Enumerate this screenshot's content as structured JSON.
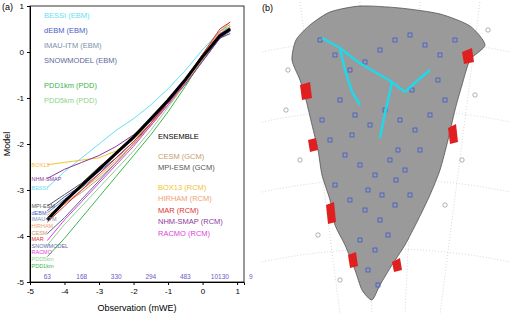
{
  "chart_data": {
    "type": "line",
    "panel_label": "(a)",
    "xlabel": "Observation (mWE)",
    "ylabel": "Model",
    "x": [
      -4.5,
      -4,
      -3.5,
      -3,
      -2.5,
      -2,
      -1.5,
      -1,
      -0.5,
      0,
      0.5,
      0.8
    ],
    "xlim": [
      -5,
      1.2
    ],
    "ylim": [
      -5,
      1
    ],
    "xticks": [
      -5,
      -4,
      -3,
      -2,
      -1,
      0,
      1
    ],
    "yticks": [
      -5,
      -4,
      -3,
      -2,
      -1,
      0,
      1
    ],
    "series": [
      {
        "name": "BESSI (EBM)",
        "start_label": "BESSI",
        "color": "#66e0f0",
        "line_style": "solid",
        "values": [
          -2.95,
          -2.6,
          -2.3,
          -2.0,
          -1.7,
          -1.45,
          -1.15,
          -0.8,
          -0.4,
          0.05,
          0.45,
          0.55
        ]
      },
      {
        "name": "dEBM (EBM)",
        "start_label": "dEBM",
        "color": "#4a5cc7",
        "line_style": "solid",
        "values": [
          -3.45,
          -3.15,
          -2.9,
          -2.6,
          -2.3,
          -1.95,
          -1.55,
          -1.15,
          -0.7,
          -0.2,
          0.3,
          0.45
        ]
      },
      {
        "name": "IMAU-ITM (EBM)",
        "start_label": "IMAU-ITM",
        "color": "#7b8fa8",
        "line_style": "solid",
        "values": [
          -3.5,
          -3.2,
          -2.95,
          -2.65,
          -2.3,
          -1.95,
          -1.55,
          -1.1,
          -0.65,
          -0.1,
          0.4,
          0.55
        ]
      },
      {
        "name": "SNOWMODEL (EBM)",
        "start_label": "SNOWMODEL",
        "color": "#5a6a9a",
        "line_style": "solid",
        "values": [
          -3.95,
          -3.6,
          -3.2,
          -2.8,
          -2.4,
          -2.0,
          -1.55,
          -1.1,
          -0.6,
          -0.1,
          0.35,
          0.45
        ]
      },
      {
        "name": "PDD1km (PDD)",
        "start_label": "PDD1km",
        "color": "#3cb44b",
        "line_style": "solid",
        "values": [
          -4.45,
          -4.05,
          -3.6,
          -3.15,
          -2.7,
          -2.25,
          -1.8,
          -1.3,
          -0.75,
          -0.15,
          0.35,
          0.5
        ]
      },
      {
        "name": "PDD5km (PDD)",
        "start_label": "PDD5km",
        "color": "#8fd18a",
        "line_style": "solid",
        "values": [
          -4.2,
          -3.75,
          -3.35,
          -2.95,
          -2.55,
          -2.15,
          -1.7,
          -1.2,
          -0.7,
          -0.1,
          0.4,
          0.55
        ]
      },
      {
        "name": "ENSEMBLE",
        "color": "#000000",
        "line_style": "thick",
        "values": [
          -3.65,
          -3.25,
          -2.9,
          -2.55,
          -2.2,
          -1.85,
          -1.45,
          -1.05,
          -0.6,
          -0.1,
          0.35,
          0.5
        ]
      },
      {
        "name": "CESM (GCM)",
        "start_label": "CESM",
        "color": "#c4a06a",
        "line_style": "solid",
        "values": [
          -3.6,
          -3.3,
          -3.05,
          -2.75,
          -2.4,
          -2.0,
          -1.6,
          -1.15,
          -0.65,
          -0.05,
          0.45,
          0.6
        ]
      },
      {
        "name": "MPI-ESM (GCM)",
        "start_label": "MPI-ESM",
        "color": "#555555",
        "line_style": "solid",
        "values": [
          -3.35,
          -3.1,
          -2.85,
          -2.5,
          -2.2,
          -1.9,
          -1.5,
          -1.1,
          -0.65,
          -0.15,
          0.3,
          0.4
        ]
      },
      {
        "name": "BOX13 (RCM)",
        "start_label": "BOX13",
        "color": "#f2c230",
        "line_style": "solid",
        "values": [
          -2.45,
          -2.4,
          -2.35,
          -2.3,
          -2.15,
          -1.9,
          -1.55,
          -1.15,
          -0.7,
          -0.15,
          0.35,
          0.55
        ]
      },
      {
        "name": "HIRHAM (RCM)",
        "start_label": "HIRHAM",
        "color": "#f0a070",
        "line_style": "solid",
        "values": [
          -3.55,
          -3.3,
          -3.0,
          -2.7,
          -2.35,
          -2.0,
          -1.6,
          -1.15,
          -0.7,
          -0.1,
          0.45,
          0.65
        ]
      },
      {
        "name": "MAR (RCM)",
        "start_label": "MAR",
        "color": "#e03030",
        "line_style": "solid",
        "values": [
          -3.7,
          -3.35,
          -3.0,
          -2.65,
          -2.3,
          -1.95,
          -1.55,
          -1.1,
          -0.6,
          -0.05,
          0.5,
          0.65
        ]
      },
      {
        "name": "NHM-SMAP (RCM)",
        "start_label": "NHM-SMAP",
        "color": "#8a3a9a",
        "line_style": "solid",
        "values": [
          -2.75,
          -2.55,
          -2.4,
          -2.25,
          -2.05,
          -1.8,
          -1.5,
          -1.1,
          -0.7,
          -0.2,
          0.3,
          0.5
        ]
      },
      {
        "name": "RACMO (RCM)",
        "start_label": "RACMO",
        "color": "#e040e0",
        "line_style": "solid",
        "values": [
          -4.1,
          -3.65,
          -3.25,
          -2.85,
          -2.45,
          -2.05,
          -1.6,
          -1.15,
          -0.65,
          -0.1,
          0.4,
          0.5
        ]
      }
    ],
    "bin_counts": {
      "x": [
        -4.5,
        -3.5,
        -2.5,
        -1.5,
        -0.5,
        0.5,
        1.4
      ],
      "counts": [
        63,
        168,
        330,
        294,
        483,
        10130,
        9
      ],
      "color": "#6a5acd"
    }
  },
  "map_panel": {
    "panel_label": "(b)"
  }
}
